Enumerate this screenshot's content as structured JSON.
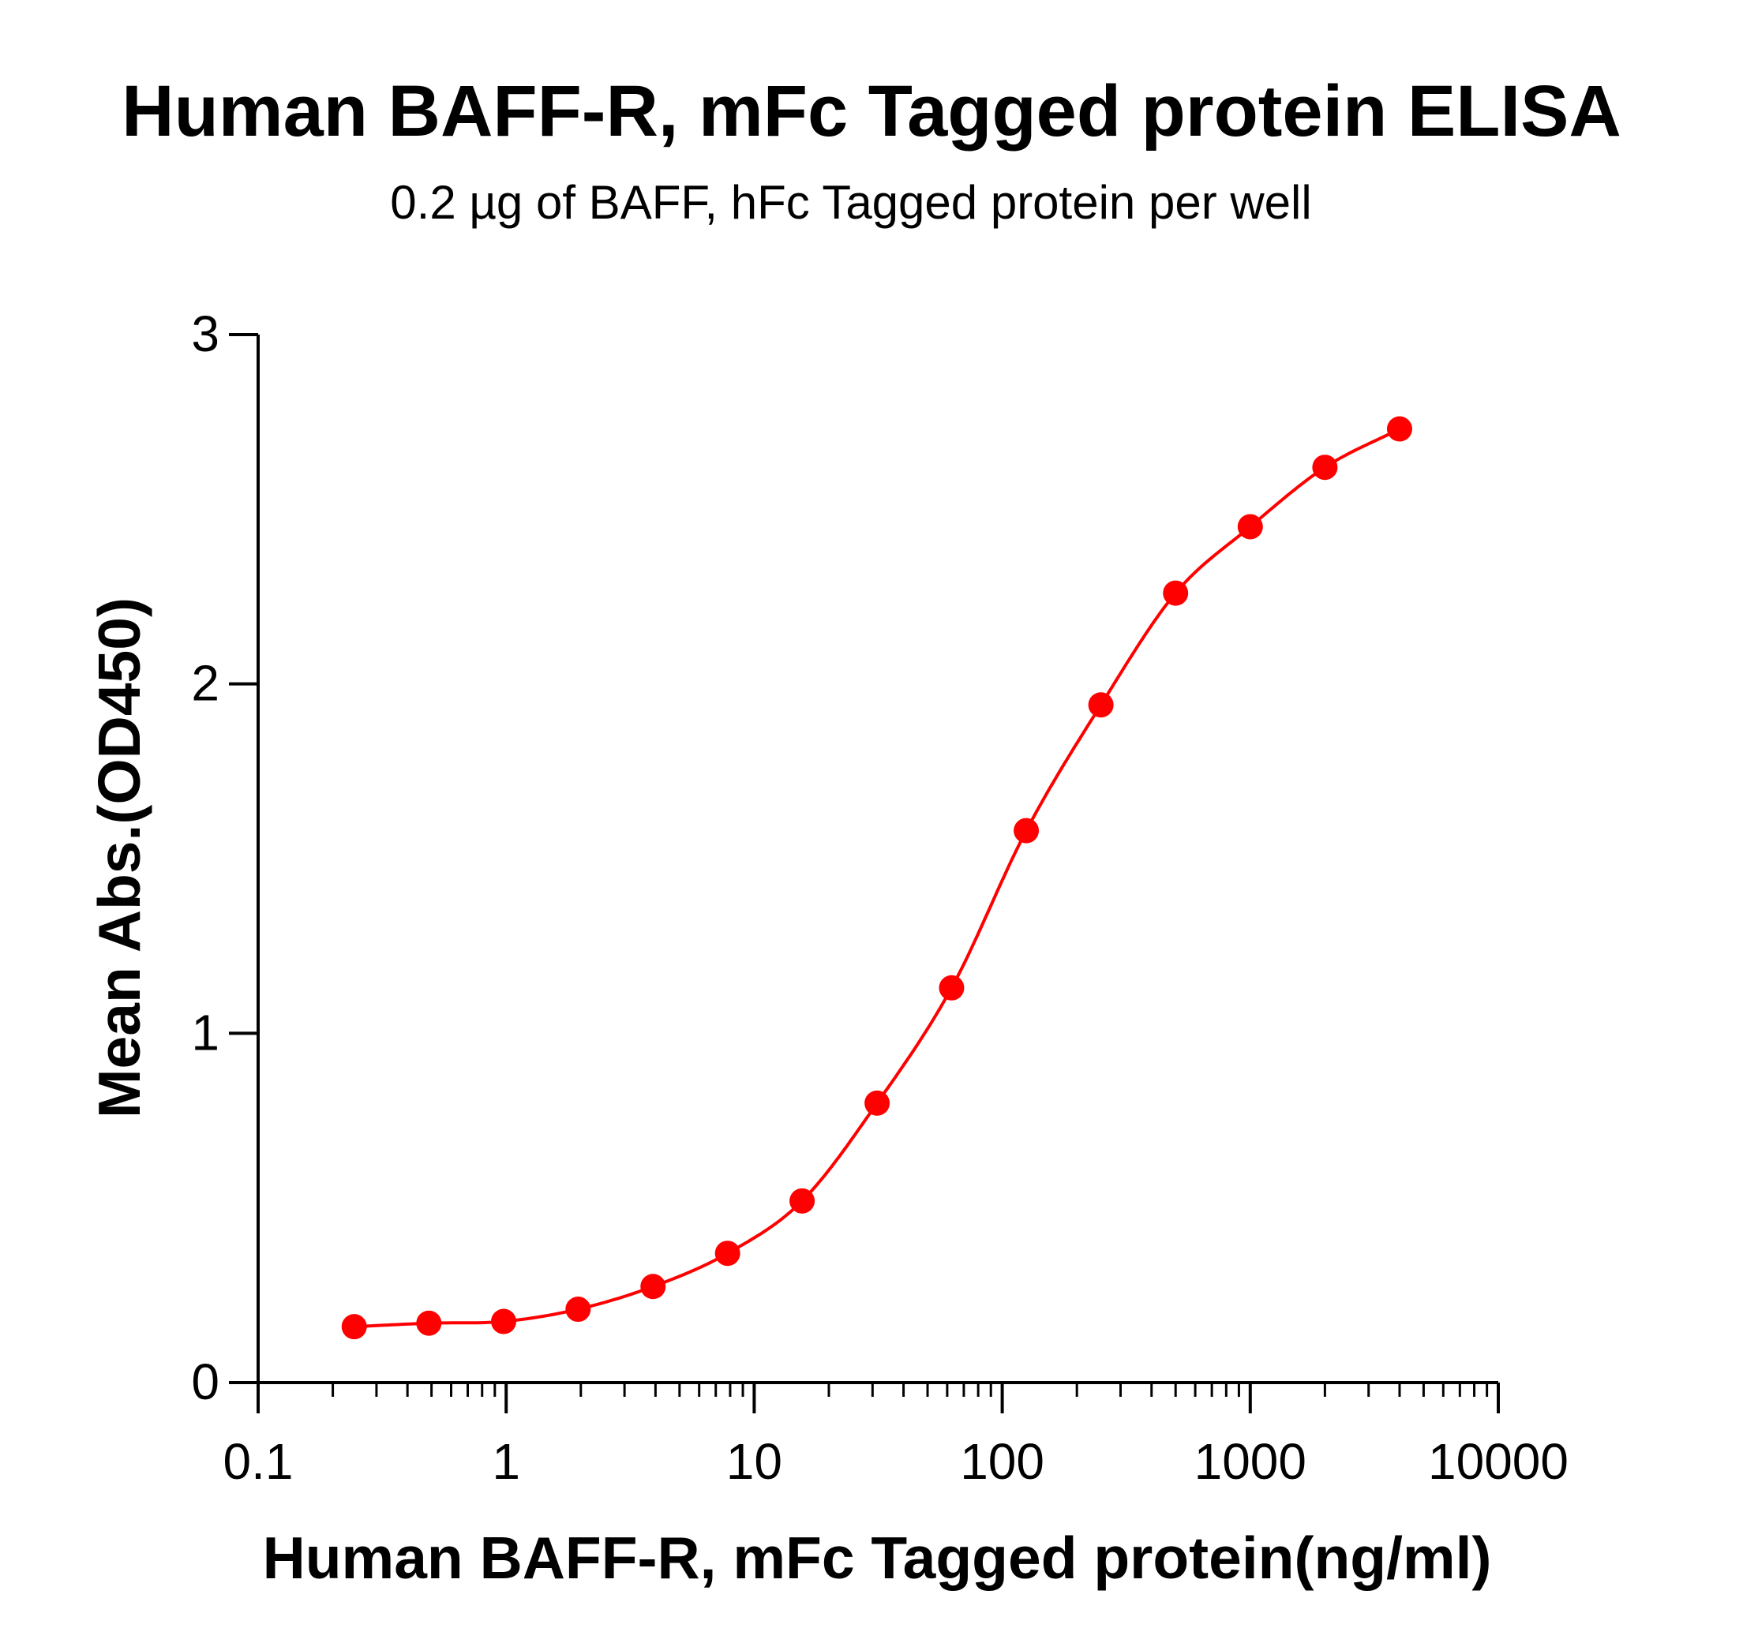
{
  "chart_data": {
    "type": "scatter",
    "title": "Human BAFF-R, mFc Tagged protein ELISA",
    "subtitle": "0.2 µg of BAFF, hFc Tagged protein per well",
    "xlabel": "Human BAFF-R, mFc Tagged protein(ng/ml)",
    "ylabel": "Mean Abs.(OD450)",
    "x_scale": "log",
    "xlim": [
      0.1,
      10000
    ],
    "ylim": [
      0,
      3
    ],
    "x_ticks": [
      "0.1",
      "1",
      "10",
      "100",
      "1000",
      "10000"
    ],
    "y_ticks": [
      "0",
      "1",
      "2",
      "3"
    ],
    "grid": false,
    "color": "#ff0000",
    "fit_curve": "sigmoidal",
    "x": [
      0.244,
      0.488,
      0.977,
      1.95,
      3.91,
      7.81,
      15.6,
      31.3,
      62.5,
      125,
      250,
      500,
      1000,
      2000,
      4000
    ],
    "y": [
      0.16,
      0.17,
      0.175,
      0.21,
      0.275,
      0.37,
      0.52,
      0.8,
      1.13,
      1.58,
      1.94,
      2.26,
      2.45,
      2.62,
      2.73
    ]
  }
}
